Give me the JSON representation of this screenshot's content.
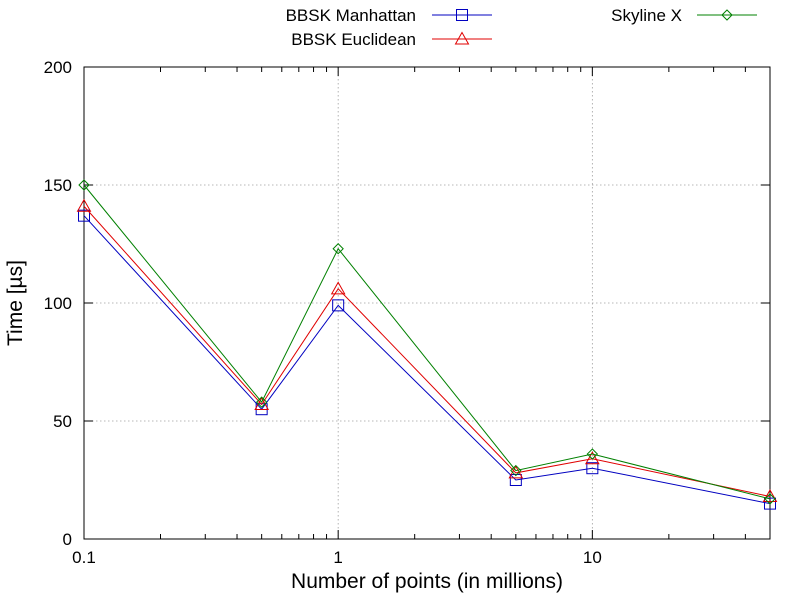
{
  "chart_data": {
    "type": "line",
    "title": "",
    "xlabel": "Number of points (in millions)",
    "ylabel": "Time [µs]",
    "x_scale": "log",
    "xlim": [
      0.1,
      50
    ],
    "ylim": [
      0,
      200
    ],
    "x_ticks": [
      {
        "value": 0.1,
        "label": "0.1"
      },
      {
        "value": 1,
        "label": "1"
      },
      {
        "value": 10,
        "label": "10"
      }
    ],
    "y_ticks": [
      {
        "value": 0,
        "label": "0"
      },
      {
        "value": 50,
        "label": "50"
      },
      {
        "value": 100,
        "label": "100"
      },
      {
        "value": 150,
        "label": "150"
      },
      {
        "value": 200,
        "label": "200"
      }
    ],
    "grid": true,
    "legend_position": "top",
    "x": [
      0.1,
      0.5,
      1,
      5,
      10,
      50
    ],
    "series": [
      {
        "name": "BBSK Manhattan",
        "color": "#0000c0",
        "marker": "square",
        "values": [
          137,
          55,
          99,
          25,
          30,
          15
        ]
      },
      {
        "name": "BBSK Euclidean",
        "color": "#e00000",
        "marker": "triangle",
        "values": [
          141,
          57,
          106,
          28,
          34,
          18
        ]
      },
      {
        "name": "Skyline X",
        "color": "#008000",
        "marker": "diamond",
        "values": [
          150,
          58,
          123,
          29,
          36,
          17
        ]
      }
    ]
  }
}
